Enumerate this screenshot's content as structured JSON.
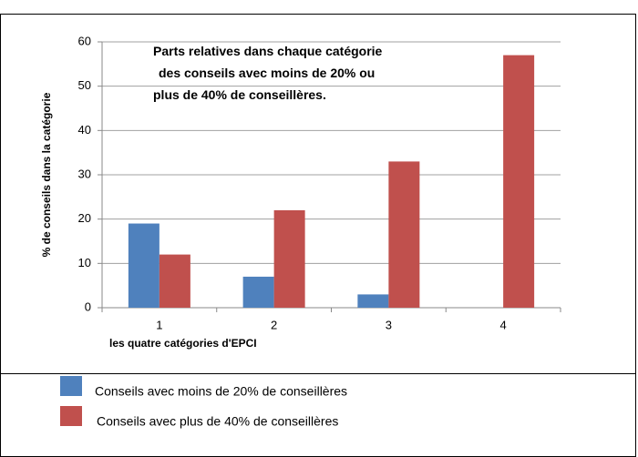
{
  "chart_data": {
    "type": "bar",
    "title_lines": [
      [
        "Parts relatives dans chaque catégorie"
      ],
      [
        "des  conseils avec ",
        "moins",
        " de 20% ou"
      ],
      [
        "plus de 40% de conseillères."
      ]
    ],
    "y_label": "% de conseils dans  la catégorie",
    "x_label": "les quatre catégories d'EPCI",
    "categories": [
      "1",
      "2",
      "3",
      "4"
    ],
    "series": [
      {
        "name": "Conseils avec moins de 20% de conseillères",
        "color": "#4f81bd",
        "values": [
          19,
          7,
          3,
          0
        ]
      },
      {
        "name": "Conseils avec plus de 40% de conseillères",
        "color": "#c0504d",
        "values": [
          12,
          22,
          33,
          57
        ]
      }
    ],
    "ylim": [
      0,
      60
    ],
    "yticks": [
      0,
      10,
      20,
      30,
      40,
      50,
      60
    ],
    "grid": true
  }
}
